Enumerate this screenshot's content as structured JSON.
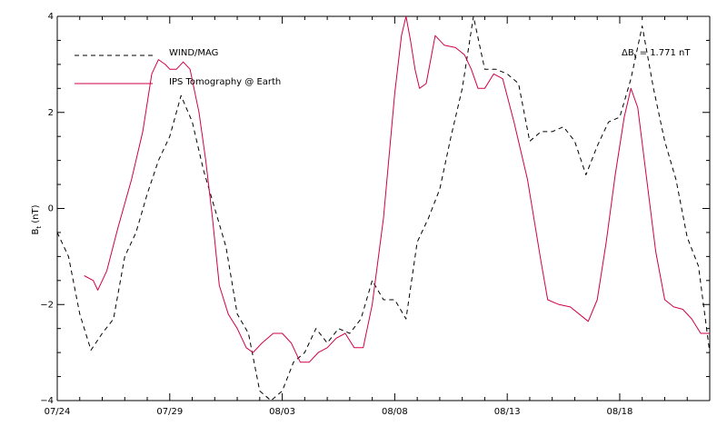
{
  "chart_data": {
    "type": "line",
    "title": "",
    "xlabel": "",
    "ylabel": "B",
    "ylabel_subscript": "t",
    "ylabel_unit": " (nT)",
    "ylim": [
      -4,
      4
    ],
    "xlim": [
      0,
      29
    ],
    "x_tick_labels": [
      {
        "x": 0,
        "label": "07/24"
      },
      {
        "x": 5,
        "label": "07/29"
      },
      {
        "x": 10,
        "label": "08/03"
      },
      {
        "x": 15,
        "label": "08/08"
      },
      {
        "x": 20,
        "label": "08/13"
      },
      {
        "x": 25,
        "label": "08/18"
      }
    ],
    "y_tick_labels": [
      {
        "y": -4,
        "label": "−4"
      },
      {
        "y": -2,
        "label": "−2"
      },
      {
        "y": 0,
        "label": "0"
      },
      {
        "y": 2,
        "label": "2"
      },
      {
        "y": 4,
        "label": "4"
      }
    ],
    "annotation": {
      "prefix": "ΔB",
      "subscript": "t",
      "suffix": " = 1.771 nT"
    },
    "series": [
      {
        "name": "WIND/MAG",
        "color": "#000000",
        "dash": "dashed",
        "points": [
          [
            0,
            -0.5
          ],
          [
            0.5,
            -1.0
          ],
          [
            1,
            -2.2
          ],
          [
            1.5,
            -2.95
          ],
          [
            2,
            -2.6
          ],
          [
            2.5,
            -2.3
          ],
          [
            3,
            -1.0
          ],
          [
            3.5,
            -0.5
          ],
          [
            4,
            0.3
          ],
          [
            4.5,
            1.0
          ],
          [
            5,
            1.5
          ],
          [
            5.5,
            2.35
          ],
          [
            6,
            1.8
          ],
          [
            6.5,
            0.8
          ],
          [
            7,
            0.0
          ],
          [
            7.5,
            -0.8
          ],
          [
            8,
            -2.2
          ],
          [
            8.5,
            -2.6
          ],
          [
            9,
            -3.8
          ],
          [
            9.5,
            -4.0
          ],
          [
            10,
            -3.8
          ],
          [
            10.5,
            -3.2
          ],
          [
            11,
            -3.0
          ],
          [
            11.5,
            -2.5
          ],
          [
            12,
            -2.8
          ],
          [
            12.5,
            -2.5
          ],
          [
            13,
            -2.6
          ],
          [
            13.5,
            -2.3
          ],
          [
            14,
            -1.5
          ],
          [
            14.5,
            -1.9
          ],
          [
            15,
            -1.9
          ],
          [
            15.5,
            -2.3
          ],
          [
            16,
            -0.7
          ],
          [
            16.5,
            -0.2
          ],
          [
            17,
            0.4
          ],
          [
            17.5,
            1.5
          ],
          [
            18,
            2.5
          ],
          [
            18.5,
            4.0
          ],
          [
            19,
            2.9
          ],
          [
            19.5,
            2.9
          ],
          [
            20,
            2.8
          ],
          [
            20.5,
            2.6
          ],
          [
            21,
            1.4
          ],
          [
            21.5,
            1.6
          ],
          [
            22,
            1.6
          ],
          [
            22.5,
            1.7
          ],
          [
            23,
            1.4
          ],
          [
            23.5,
            0.7
          ],
          [
            24,
            1.3
          ],
          [
            24.5,
            1.8
          ],
          [
            25,
            1.9
          ],
          [
            25.5,
            2.7
          ],
          [
            26,
            3.8
          ],
          [
            26.5,
            2.5
          ],
          [
            27,
            1.4
          ],
          [
            27.5,
            0.6
          ],
          [
            28,
            -0.6
          ],
          [
            28.5,
            -1.2
          ],
          [
            29,
            -3.0
          ],
          [
            29.5,
            -4.0
          ],
          [
            30,
            -3.5
          ],
          [
            30.5,
            -2.5
          ],
          [
            31,
            -2.2
          ]
        ]
      },
      {
        "name": "IPS Tomography @ Earth",
        "color": "#d0004a",
        "dash": "solid",
        "points": [
          [
            1.2,
            -1.4
          ],
          [
            1.6,
            -1.5
          ],
          [
            1.8,
            -1.7
          ],
          [
            2.2,
            -1.3
          ],
          [
            2.7,
            -0.4
          ],
          [
            3.3,
            0.6
          ],
          [
            3.8,
            1.6
          ],
          [
            4.2,
            2.8
          ],
          [
            4.5,
            3.1
          ],
          [
            4.8,
            3.0
          ],
          [
            5,
            2.9
          ],
          [
            5.3,
            2.9
          ],
          [
            5.6,
            3.05
          ],
          [
            5.9,
            2.9
          ],
          [
            6.3,
            2.0
          ],
          [
            6.6,
            1.0
          ],
          [
            6.9,
            -0.2
          ],
          [
            7.2,
            -1.6
          ],
          [
            7.6,
            -2.2
          ],
          [
            8.0,
            -2.5
          ],
          [
            8.4,
            -2.9
          ],
          [
            8.7,
            -3.0
          ],
          [
            9.1,
            -2.8
          ],
          [
            9.6,
            -2.6
          ],
          [
            10,
            -2.6
          ],
          [
            10.4,
            -2.8
          ],
          [
            10.8,
            -3.2
          ],
          [
            11.2,
            -3.2
          ],
          [
            11.6,
            -3.0
          ],
          [
            12,
            -2.9
          ],
          [
            12.4,
            -2.7
          ],
          [
            12.8,
            -2.6
          ],
          [
            13.2,
            -2.9
          ],
          [
            13.6,
            -2.9
          ],
          [
            14.0,
            -2.0
          ],
          [
            14.5,
            -0.2
          ],
          [
            15.0,
            2.4
          ],
          [
            15.3,
            3.6
          ],
          [
            15.5,
            4.0
          ],
          [
            15.7,
            3.5
          ],
          [
            15.9,
            2.9
          ],
          [
            16.1,
            2.5
          ],
          [
            16.4,
            2.6
          ],
          [
            16.8,
            3.6
          ],
          [
            17.2,
            3.4
          ],
          [
            17.7,
            3.35
          ],
          [
            18.1,
            3.2
          ],
          [
            18.4,
            2.9
          ],
          [
            18.7,
            2.5
          ],
          [
            19.0,
            2.5
          ],
          [
            19.4,
            2.8
          ],
          [
            19.8,
            2.7
          ],
          [
            20.3,
            1.8
          ],
          [
            20.9,
            0.6
          ],
          [
            21.5,
            -1.1
          ],
          [
            21.8,
            -1.9
          ],
          [
            22.3,
            -2.0
          ],
          [
            22.8,
            -2.05
          ],
          [
            23.2,
            -2.2
          ],
          [
            23.6,
            -2.35
          ],
          [
            24.0,
            -1.9
          ],
          [
            24.4,
            -0.7
          ],
          [
            24.8,
            0.7
          ],
          [
            25.2,
            1.9
          ],
          [
            25.5,
            2.5
          ],
          [
            25.8,
            2.1
          ],
          [
            26.2,
            0.6
          ],
          [
            26.6,
            -0.9
          ],
          [
            27.0,
            -1.9
          ],
          [
            27.4,
            -2.05
          ],
          [
            27.8,
            -2.1
          ],
          [
            28.2,
            -2.3
          ],
          [
            28.6,
            -2.6
          ],
          [
            29.0,
            -2.6
          ]
        ]
      }
    ]
  }
}
